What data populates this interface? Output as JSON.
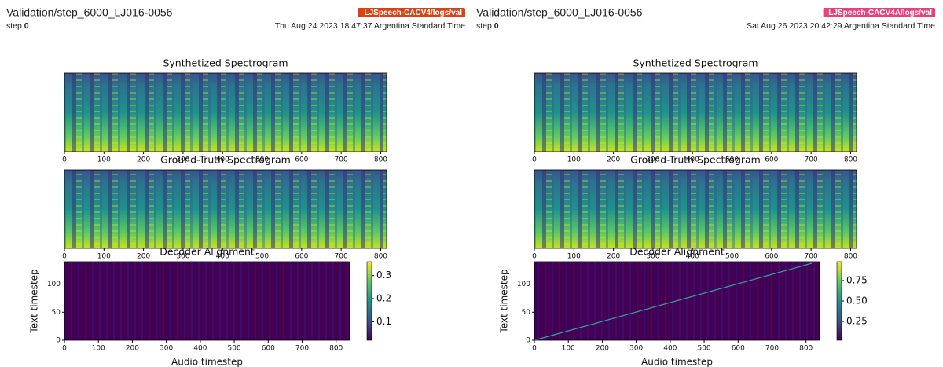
{
  "panels": [
    {
      "title": "Validation/step_6000_LJ016-0056",
      "step_label": "step",
      "step": "0",
      "run": "LJSpeech-CACV4/logs/val",
      "run_color": "#d84315",
      "timestamp": "Thu Aug 24 2023 18:47:37 Argentina Standard Time",
      "plots": [
        {
          "title": "Synthetized Spectrogram",
          "xlim": [
            0,
            815
          ],
          "xticks": [
            0,
            100,
            200,
            300,
            400,
            500,
            600,
            700,
            800
          ]
        },
        {
          "title": "Ground-Truth Spectrogram",
          "xlim": [
            0,
            815
          ],
          "xticks": [
            0,
            100,
            200,
            300,
            400,
            500,
            600,
            700,
            800
          ]
        },
        {
          "title": "Decoder Alignment",
          "xlabel": "Audio timestep",
          "ylabel": "Text timestep",
          "xlim": [
            0,
            840
          ],
          "xticks": [
            0,
            100,
            200,
            300,
            400,
            500,
            600,
            700,
            800
          ],
          "ylim": [
            0,
            140
          ],
          "yticks": [
            0,
            50,
            100
          ],
          "clim": [
            0.02,
            0.36
          ],
          "cticks": [
            0.1,
            0.2,
            0.3
          ]
        }
      ]
    },
    {
      "title": "Validation/step_6000_LJ016-0056",
      "step_label": "step",
      "step": "0",
      "run": "LJSpeech-CACV4A/logs/val",
      "run_color": "#ec407a",
      "timestamp": "Sat Aug 26 2023 20:42:29 Argentina Standard Time",
      "plots": [
        {
          "title": "Synthetized Spectrogram",
          "xlim": [
            0,
            815
          ],
          "xticks": [
            0,
            100,
            200,
            300,
            400,
            500,
            600,
            700,
            800
          ]
        },
        {
          "title": "Ground-Truth Spectrogram",
          "xlim": [
            0,
            815
          ],
          "xticks": [
            0,
            100,
            200,
            300,
            400,
            500,
            600,
            700,
            800
          ]
        },
        {
          "title": "Decoder Alignment",
          "xlabel": "Audio timestep",
          "ylabel": "Text timestep",
          "xlim": [
            0,
            840
          ],
          "xticks": [
            0,
            100,
            200,
            300,
            400,
            500,
            600,
            700,
            800
          ],
          "ylim": [
            0,
            140
          ],
          "yticks": [
            0,
            50,
            100
          ],
          "clim": [
            0.02,
            0.98
          ],
          "cticks": [
            {
              "value": 0.25,
              "label": "0.25"
            },
            {
              "value": 0.5,
              "label": "0.50"
            },
            {
              "value": 0.75,
              "label": "0.75"
            }
          ]
        }
      ]
    }
  ]
}
